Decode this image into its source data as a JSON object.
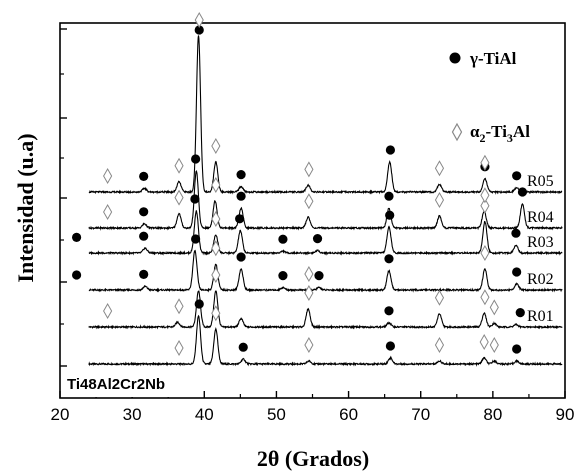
{
  "chart_data": {
    "type": "line",
    "xlabel": "2θ (Grados)",
    "ylabel": "Intensidad (u.a)",
    "xlim": [
      20,
      90
    ],
    "xticks": [
      "20",
      "30",
      "40",
      "50",
      "60",
      "70",
      "80",
      "90"
    ],
    "grid": false,
    "sample_label": "Ti48Al2Cr2Nb",
    "legend": {
      "placement": "top-right",
      "entries": [
        {
          "symbol": "filled-circle",
          "label": "γ-TiAl"
        },
        {
          "symbol": "open-diamond",
          "label": "α2-Ti3Al",
          "base": "α",
          "sub1": "2",
          "mid": "-Ti",
          "sub2": "3",
          "end": "Al"
        }
      ]
    },
    "series": [
      {
        "name": "",
        "offset": 0,
        "baseline": 1.0,
        "peaks": [
          [
            39.2,
            8.0
          ],
          [
            41.6,
            5.8
          ],
          [
            45.4,
            0.8
          ],
          [
            54.5,
            0.5
          ],
          [
            65.8,
            1.0
          ],
          [
            72.6,
            0.5
          ],
          [
            78.8,
            1.0
          ],
          [
            80.2,
            0.5
          ],
          [
            83.3,
            0.5
          ]
        ],
        "circles": [
          39.3,
          45.4,
          65.8,
          83.3
        ],
        "diamonds": [
          36.5,
          41.6,
          54.5,
          72.6,
          78.8,
          80.2
        ]
      },
      {
        "name": "R01",
        "offset": 1,
        "baseline": 1.0,
        "peaks": [
          [
            36.3,
            0.8
          ],
          [
            39.2,
            6.0
          ],
          [
            41.6,
            6.0
          ],
          [
            45.1,
            1.4
          ],
          [
            54.4,
            3.0
          ],
          [
            65.6,
            0.7
          ],
          [
            72.6,
            2.2
          ],
          [
            78.8,
            2.3
          ],
          [
            80.2,
            0.6
          ],
          [
            83.2,
            0.4
          ]
        ],
        "circles": [
          65.6,
          83.8
        ],
        "diamonds": [
          26.6,
          36.5,
          41.6,
          54.5,
          72.6,
          78.9,
          80.2
        ]
      },
      {
        "name": "R02",
        "offset": 2,
        "baseline": 1.0,
        "peaks": [
          [
            22.3,
            0.5
          ],
          [
            31.8,
            0.6
          ],
          [
            38.7,
            6.5
          ],
          [
            41.6,
            4.3
          ],
          [
            45.1,
            3.5
          ],
          [
            50.9,
            0.4
          ],
          [
            55.9,
            0.4
          ],
          [
            65.6,
            3.2
          ],
          [
            78.9,
            3.5
          ],
          [
            83.3,
            1.0
          ]
        ],
        "circles": [
          22.3,
          31.6,
          38.8,
          45.1,
          50.9,
          55.9,
          65.6,
          83.3
        ],
        "diamonds": [
          41.6,
          54.5,
          78.9
        ]
      },
      {
        "name": "R03",
        "offset": 3,
        "baseline": 1.0,
        "peaks": [
          [
            22.3,
            0.6
          ],
          [
            31.8,
            0.8
          ],
          [
            38.9,
            7.0
          ],
          [
            41.6,
            3.0
          ],
          [
            45.0,
            3.7
          ],
          [
            50.9,
            0.3
          ],
          [
            55.7,
            0.4
          ],
          [
            65.6,
            4.3
          ],
          [
            78.9,
            5.2
          ],
          [
            83.2,
            1.3
          ]
        ],
        "circles": [
          22.3,
          31.6,
          38.7,
          44.9,
          50.9,
          55.7,
          65.7,
          83.2
        ],
        "diamonds": [
          41.6,
          78.9
        ]
      },
      {
        "name": "R04",
        "offset": 4,
        "baseline": 1.0,
        "peaks": [
          [
            31.7,
            0.7
          ],
          [
            36.5,
            2.4
          ],
          [
            38.9,
            9.5
          ],
          [
            41.5,
            4.5
          ],
          [
            45.1,
            3.3
          ],
          [
            54.4,
            1.8
          ],
          [
            65.6,
            3.3
          ],
          [
            72.6,
            2.0
          ],
          [
            78.8,
            2.8
          ],
          [
            84.1,
            4.0
          ]
        ],
        "circles": [
          31.6,
          38.8,
          45.1,
          65.6,
          84.1
        ],
        "diamonds": [
          26.6,
          36.5,
          41.6,
          54.5,
          72.6,
          78.9
        ]
      },
      {
        "name": "R05",
        "offset": 5,
        "baseline": 1.0,
        "peaks": [
          [
            31.7,
            0.6
          ],
          [
            36.5,
            1.7
          ],
          [
            39.2,
            26.0
          ],
          [
            41.6,
            5.0
          ],
          [
            45.1,
            0.9
          ],
          [
            54.4,
            1.1
          ],
          [
            65.7,
            5.0
          ],
          [
            72.6,
            1.3
          ],
          [
            78.9,
            2.2
          ],
          [
            83.3,
            0.7
          ]
        ],
        "circles": [
          31.6,
          39.3,
          45.1,
          65.8,
          78.9,
          83.3
        ],
        "diamonds": [
          26.6,
          36.5,
          39.3,
          41.6,
          54.5,
          72.6,
          78.9
        ]
      }
    ]
  }
}
